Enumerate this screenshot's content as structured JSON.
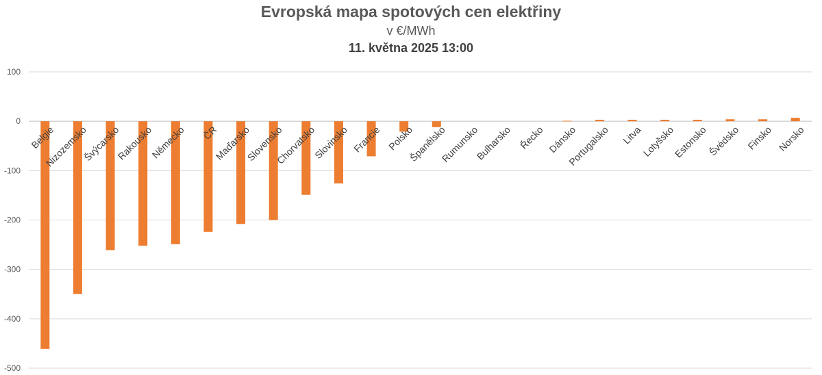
{
  "chart_data": {
    "type": "bar",
    "title": "Evropská mapa spotových cen elektřiny",
    "subtitle": "v €/MWh",
    "date": "11. května 2025 13:00",
    "xlabel": "",
    "ylabel": "",
    "ylim": [
      -500,
      100
    ],
    "yticks": [
      100,
      0,
      -100,
      -200,
      -300,
      -400,
      -500
    ],
    "grid": true,
    "colors": {
      "bar": "#ed7d31"
    },
    "categories": [
      "Belgie",
      "Nizozemsko",
      "Švýcarsko",
      "Rakousko",
      "Německo",
      "ČR",
      "Maďarsko",
      "Slovensko",
      "Chorvatsko",
      "Slovinsko",
      "Francie",
      "Polsko",
      "Španělsko",
      "Rumunsko",
      "Bulharsko",
      "Řecko",
      "Dánsko",
      "Portugalsko",
      "Litva",
      "Lotyšsko",
      "Estonsko",
      "Švédsko",
      "Finsko",
      "Norsko"
    ],
    "values": [
      -461,
      -350,
      -261,
      -252,
      -249,
      -224,
      -208,
      -200,
      -149,
      -126,
      -71,
      -21,
      -12,
      0,
      0,
      0,
      1,
      3,
      3,
      3,
      3,
      4,
      4,
      7
    ]
  }
}
